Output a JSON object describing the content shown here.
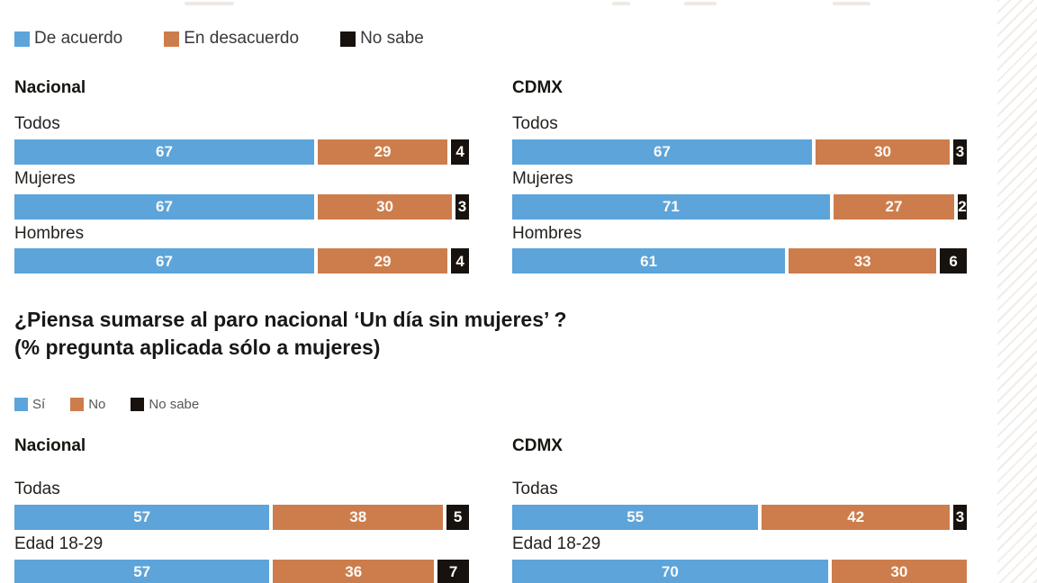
{
  "page": {
    "background": "#ffffff",
    "stripe_color": "#f1ece8"
  },
  "colors": {
    "blue": "#5ca4da",
    "orange": "#cd7d4c",
    "black": "#17120e",
    "bar_value_text": "#fcfaf6"
  },
  "chart_data": [
    {
      "type": "bar",
      "stacked": true,
      "orientation": "horizontal",
      "unit": "%",
      "xlim": [
        0,
        100
      ],
      "legend_style": "large",
      "legend": [
        {
          "label": "De acuerdo",
          "color": "#5ca4da"
        },
        {
          "label": "En desacuerdo",
          "color": "#cd7d4c"
        },
        {
          "label": "No sabe",
          "color": "#17120e"
        }
      ],
      "groups": [
        {
          "header": "Nacional",
          "categories": [
            "Todos",
            "Mujeres",
            "Hombres"
          ],
          "rows": [
            [
              67,
              29,
              4
            ],
            [
              67,
              30,
              3
            ],
            [
              67,
              29,
              4
            ]
          ]
        },
        {
          "header": "CDMX",
          "categories": [
            "Todos",
            "Mujeres",
            "Hombres"
          ],
          "rows": [
            [
              67,
              30,
              3
            ],
            [
              71,
              27,
              2
            ],
            [
              61,
              33,
              6
            ]
          ]
        }
      ]
    },
    {
      "type": "bar",
      "stacked": true,
      "orientation": "horizontal",
      "unit": "%",
      "xlim": [
        0,
        100
      ],
      "title": "¿Piensa sumarse al paro nacional ‘Un día sin mujeres’ ?",
      "subtitle": "(% pregunta aplicada sólo a mujeres)",
      "legend_style": "small",
      "legend": [
        {
          "label": "Sí",
          "color": "#5ca4da"
        },
        {
          "label": "No",
          "color": "#cd7d4c"
        },
        {
          "label": "No sabe",
          "color": "#17120e"
        }
      ],
      "groups": [
        {
          "header": "Nacional",
          "categories": [
            "Todas",
            "Edad 18-29"
          ],
          "rows": [
            [
              57,
              38,
              5
            ],
            [
              57,
              36,
              7
            ]
          ]
        },
        {
          "header": "CDMX",
          "categories": [
            "Todas",
            "Edad 18-29"
          ],
          "rows": [
            [
              55,
              42,
              3
            ],
            [
              70,
              30
            ]
          ]
        }
      ]
    }
  ]
}
